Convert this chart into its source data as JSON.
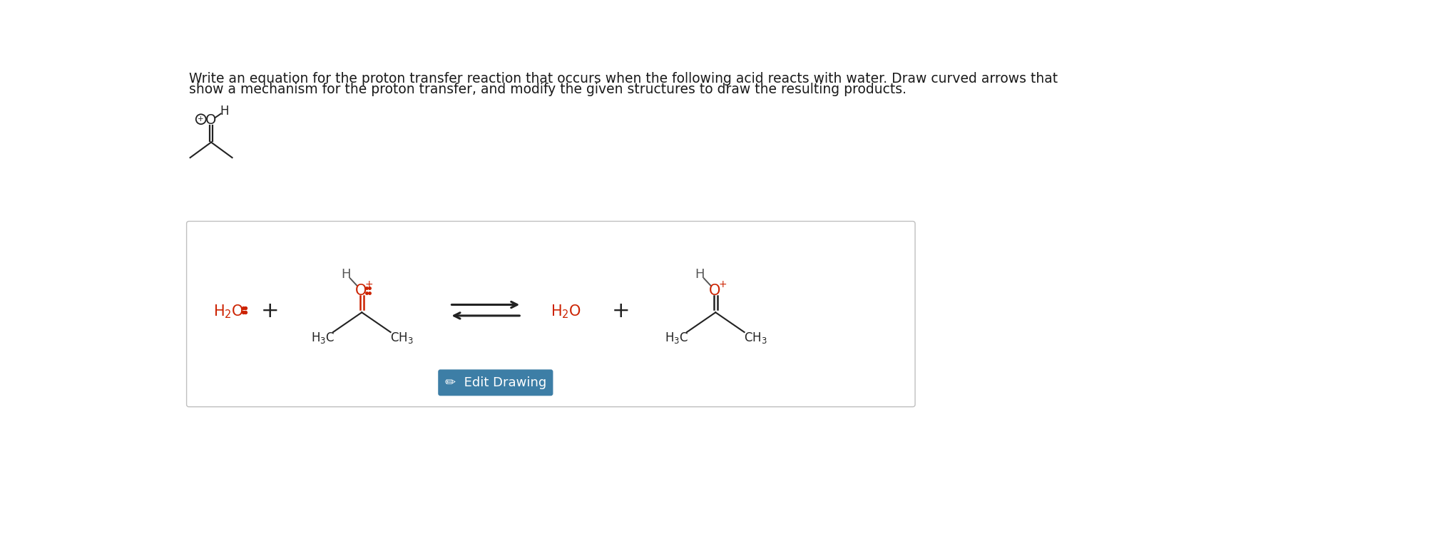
{
  "title_text1": "Write an equation for the proton transfer reaction that occurs when the following acid reacts with water. Draw curved arrows that",
  "title_text2": "show a mechanism for the proton transfer, and modify the given structures to draw the resulting products.",
  "bg_color": "#ffffff",
  "box_bg": "#ffffff",
  "box_border": "#c0c0c0",
  "text_color": "#1a1a1a",
  "red_color": "#cc2200",
  "dark_color": "#222222",
  "gray_color": "#555555",
  "button_color": "#3d7ea6",
  "button_text": "Edit Drawing"
}
